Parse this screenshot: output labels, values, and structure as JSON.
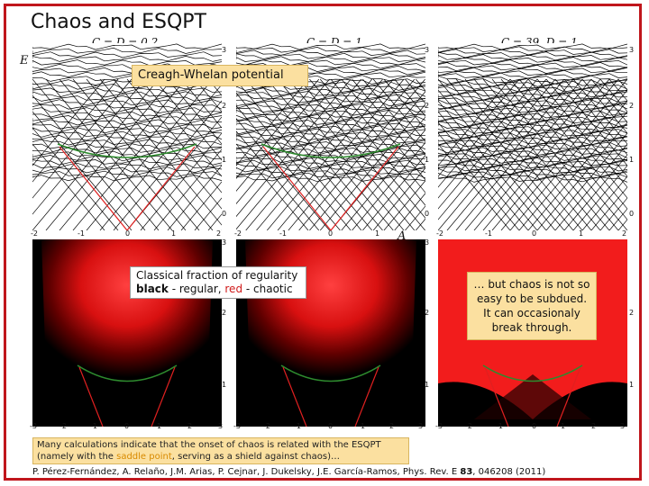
{
  "title": "Chaos and ESQPT",
  "axis": {
    "y": "E",
    "x": "A"
  },
  "panels": {
    "top_labels": [
      "C = D = 0.2",
      "C = D = 1",
      "C = 39, D = 1"
    ],
    "x_ticks": [
      "-2",
      "-1",
      "0",
      "1",
      "2"
    ],
    "y_ticks_top": [
      "3",
      "2",
      "1",
      "0"
    ],
    "x_ticks_bottom": [
      "-3",
      "-2",
      "-1",
      "0",
      "1",
      "2",
      "3"
    ],
    "y_ticks_bottom": [
      "3",
      "2",
      "1"
    ]
  },
  "callouts": {
    "potential": "Creagh-Whelan potential",
    "regularity_line1": "Classical fraction of regularity",
    "regularity_black": "black",
    "regularity_mid": " - regular, ",
    "regularity_red": "red",
    "regularity_end": " - chaotic",
    "chaos_note": "… but chaos is not so easy to be subdued. It can occasionaly break through."
  },
  "notes": {
    "line1": "Many calculations indicate that the onset of chaos is related with the ESQPT",
    "line2a": "(namely with the ",
    "line2b": "saddle point",
    "line2c": ", serving as a shield against chaos)…"
  },
  "reference": {
    "authors": "P. Pérez-Fernández, A. Relaño, J.M. Arias, P. Cejnar, J. Dukelsky, J.E. García-Ramos, Phys. Rev. E ",
    "volume": "83",
    "pages": ", 046208 (2011)"
  },
  "colors": {
    "frame": "#c0161c",
    "callout": "#fbe0a0",
    "chaotic": "#ff1a1a",
    "regular": "#000000",
    "saddle": "#2e8b2e"
  }
}
